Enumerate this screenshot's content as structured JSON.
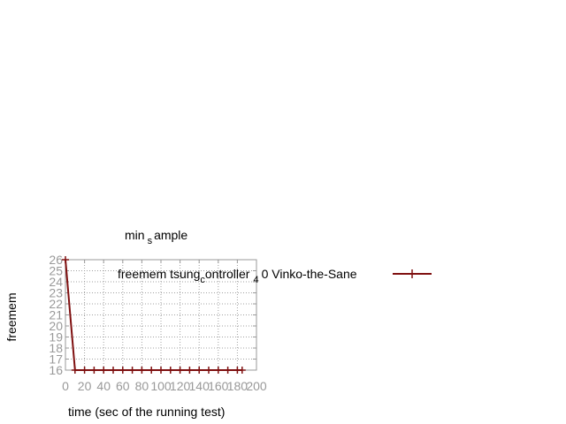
{
  "chart_data": {
    "type": "line",
    "title": "min",
    "title_subscript": "s",
    "title_rest": "ample",
    "xlabel": "time (sec of the running test)",
    "ylabel": "freemem",
    "xlim": [
      0,
      200
    ],
    "ylim": [
      16,
      26
    ],
    "xticks": [
      "0",
      "20",
      "40",
      "60",
      "80",
      "100",
      "120",
      "140",
      "160",
      "180",
      "200"
    ],
    "yticks": [
      "16",
      "17",
      "18",
      "19",
      "20",
      "21",
      "22",
      "23",
      "24",
      "25",
      "26"
    ],
    "grid": true,
    "legend_position": "top-right",
    "legend": {
      "part1": "freemem tsung",
      "sub1": "c",
      "part2": "ontroller",
      "sub2": "4",
      "part3": "0 Vinko-the-Sane"
    },
    "series": [
      {
        "name": "freemem tsung_controller_4 0 Vinko-the-Sane",
        "color": "#7f1010",
        "marker": "plus",
        "x": [
          0,
          10,
          20,
          30,
          40,
          50,
          60,
          70,
          80,
          90,
          100,
          110,
          120,
          130,
          140,
          150,
          160,
          170,
          180,
          185
        ],
        "y": [
          26,
          16,
          16,
          16,
          16,
          16,
          16,
          16,
          16,
          16,
          16,
          16,
          16,
          16,
          16,
          16,
          16,
          16,
          16,
          16
        ]
      }
    ]
  }
}
